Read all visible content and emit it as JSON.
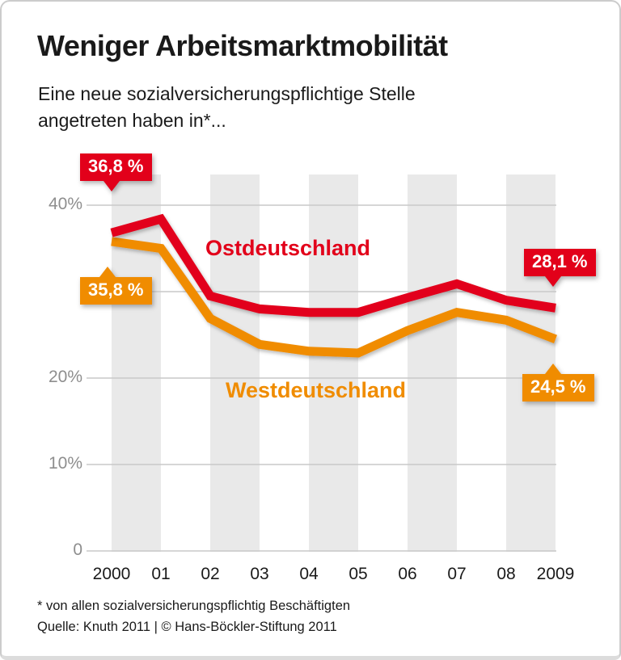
{
  "header": {
    "title": "Weniger Arbeitsmarktmobilität",
    "subtitle_line1": "Eine neue sozialversicherungspflichtige Stelle",
    "subtitle_line2": "angetreten haben in*..."
  },
  "chart_data": {
    "type": "line",
    "title": "Weniger Arbeitsmarktmobilität",
    "subtitle": "Eine neue sozialversicherungspflichtige Stelle angetreten haben in*...",
    "categories": [
      "2000",
      "01",
      "02",
      "03",
      "04",
      "05",
      "06",
      "07",
      "08",
      "2009"
    ],
    "series": [
      {
        "name": "Ostdeutschland",
        "color": "#e2001a",
        "values": [
          36.8,
          38.4,
          29.5,
          28.0,
          27.6,
          27.6,
          29.3,
          30.9,
          29.0,
          28.1
        ]
      },
      {
        "name": "Westdeutschland",
        "color": "#f08c00",
        "values": [
          35.8,
          35.0,
          26.9,
          23.9,
          23.1,
          22.9,
          25.5,
          27.6,
          26.7,
          24.5
        ]
      }
    ],
    "xlabel": "",
    "ylabel": "",
    "ylim": [
      0,
      43.5
    ],
    "yticks": [
      {
        "label": "40%",
        "value": 40
      },
      {
        "label": "20%",
        "value": 20
      },
      {
        "label": "10%",
        "value": 10
      },
      {
        "label": "0",
        "value": 0
      }
    ],
    "gridline_values": [
      40,
      30,
      20,
      10,
      0
    ],
    "grid": true,
    "legend_position": "inline-labels",
    "background_stripes": [
      [
        0,
        1
      ],
      [
        2,
        3
      ],
      [
        4,
        5
      ],
      [
        6,
        7
      ],
      [
        8,
        9
      ]
    ],
    "annotations": [
      {
        "text": "36,8 %",
        "series": "Ostdeutschland",
        "category": "2000",
        "value": 36.8,
        "placement": "above-start"
      },
      {
        "text": "35,8 %",
        "series": "Westdeutschland",
        "category": "2000",
        "value": 35.8,
        "placement": "below-start"
      },
      {
        "text": "28,1 %",
        "series": "Ostdeutschland",
        "category": "2009",
        "value": 28.1,
        "placement": "above-end"
      },
      {
        "text": "24,5 %",
        "series": "Westdeutschland",
        "category": "2009",
        "value": 24.5,
        "placement": "below-end"
      }
    ]
  },
  "footer": {
    "note": "* von allen sozialversicherungspflichtig Beschäftigten",
    "source": "Quelle: Knuth 2011 | © Hans-Böckler-Stiftung 2011"
  },
  "colors": {
    "ost_red": "#e2001a",
    "west_orange": "#f08c00",
    "stripe": "#e9e9e9",
    "grid": "#c9c9c9",
    "axis_label_gray": "#8e8e8e",
    "text_black": "#1a1a1a",
    "background": "#ffffff",
    "border": "#cccccc",
    "callout_text": "#ffffff"
  }
}
